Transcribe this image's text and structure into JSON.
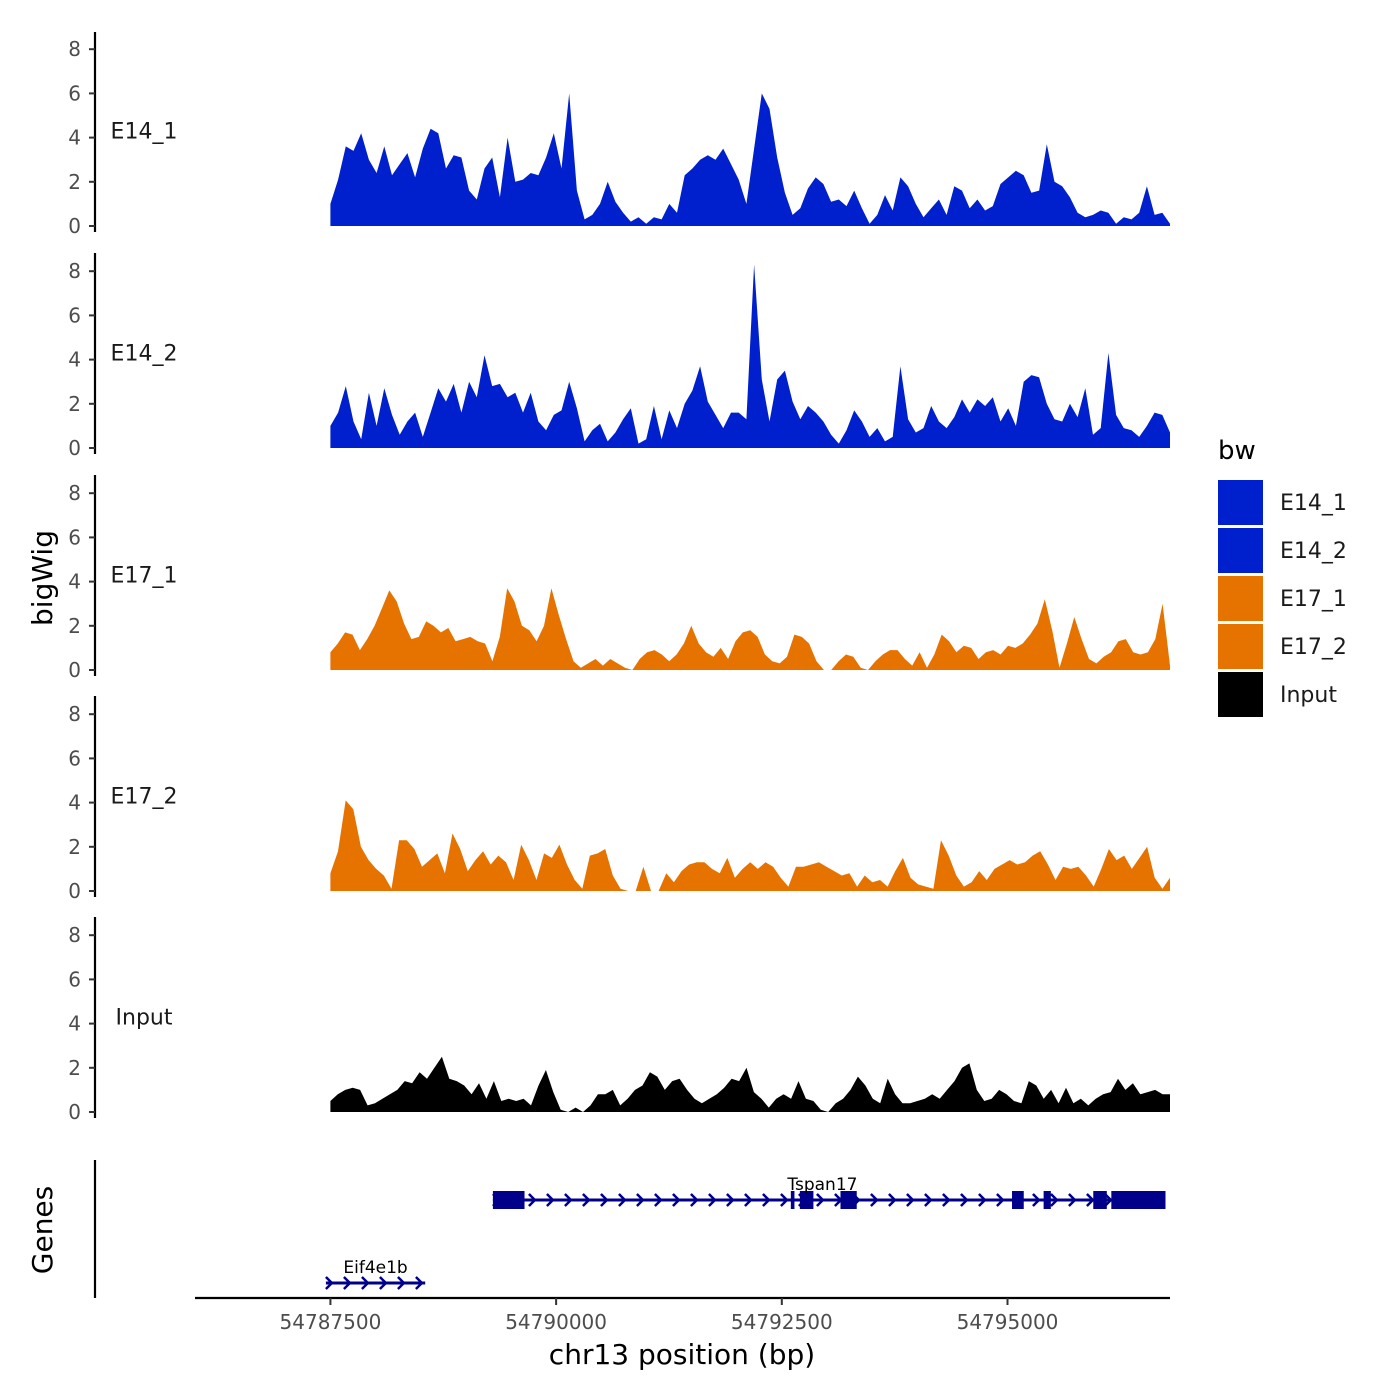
{
  "chart_data": {
    "type": "area",
    "title": "",
    "xlabel": "chr13 position (bp)",
    "ylabel": "bigWig",
    "genes_label": "Genes",
    "xlim": [
      54786000,
      54796800
    ],
    "ylim": [
      0,
      9
    ],
    "x_ticks": [
      54787500,
      54790000,
      54792500,
      54795000
    ],
    "x_tick_labels": [
      "54787500",
      "54790000",
      "54792500",
      "54795000"
    ],
    "y_ticks": [
      0,
      2,
      4,
      6,
      8
    ],
    "y_tick_labels": [
      "0",
      "2",
      "4",
      "6",
      "8"
    ],
    "data_range": [
      54787500,
      54796800
    ],
    "legend": {
      "title": "bw",
      "position": "right",
      "entries": [
        {
          "label": "E14_1",
          "color": "#0020CD"
        },
        {
          "label": "E14_2",
          "color": "#0020CD"
        },
        {
          "label": "E17_1",
          "color": "#E67300"
        },
        {
          "label": "E17_2",
          "color": "#E67300"
        },
        {
          "label": "Input",
          "color": "#000000"
        }
      ]
    },
    "series": [
      {
        "name": "E14_1",
        "color": "#0020CD",
        "values": [
          1.0,
          2.1,
          3.6,
          3.4,
          4.2,
          3.0,
          2.4,
          3.6,
          2.3,
          2.8,
          3.3,
          2.2,
          3.5,
          4.4,
          4.2,
          2.6,
          3.2,
          3.1,
          1.6,
          1.2,
          2.6,
          3.1,
          1.3,
          4.0,
          2.0,
          2.1,
          2.4,
          2.3,
          3.1,
          4.2,
          2.6,
          6.0,
          1.6,
          0.3,
          0.5,
          1.0,
          2.0,
          1.1,
          0.6,
          0.2,
          0.4,
          0.1,
          0.4,
          0.3,
          1.0,
          0.6,
          2.3,
          2.6,
          3.0,
          3.2,
          3.0,
          3.5,
          2.8,
          2.1,
          1.0,
          3.5,
          6.0,
          5.3,
          3.1,
          1.5,
          0.5,
          0.8,
          1.7,
          2.2,
          1.9,
          1.1,
          1.2,
          0.9,
          1.6,
          0.8,
          0.1,
          0.5,
          1.4,
          0.7,
          2.2,
          1.8,
          1.0,
          0.4,
          0.8,
          1.2,
          0.5,
          1.8,
          1.6,
          0.8,
          1.2,
          0.7,
          0.9,
          1.9,
          2.2,
          2.5,
          2.3,
          1.5,
          1.6,
          3.7,
          2.0,
          1.8,
          1.3,
          0.6,
          0.4,
          0.5,
          0.7,
          0.6,
          0.1,
          0.4,
          0.3,
          0.6,
          1.8,
          0.5,
          0.6,
          0.1
        ]
      },
      {
        "name": "E14_2",
        "color": "#0020CD",
        "values": [
          1.0,
          1.6,
          2.8,
          1.2,
          0.4,
          2.5,
          1.0,
          2.7,
          1.5,
          0.6,
          1.2,
          1.6,
          0.5,
          1.6,
          2.7,
          2.1,
          2.9,
          1.6,
          3.0,
          2.3,
          4.2,
          2.8,
          2.9,
          2.3,
          2.5,
          1.6,
          2.5,
          1.2,
          0.8,
          1.5,
          1.7,
          3.0,
          1.8,
          0.3,
          0.8,
          1.1,
          0.3,
          0.7,
          1.3,
          1.8,
          0.2,
          0.4,
          1.9,
          0.4,
          1.7,
          0.9,
          2.0,
          2.6,
          3.7,
          2.1,
          1.5,
          0.9,
          1.6,
          1.6,
          1.3,
          8.3,
          3.1,
          1.2,
          3.1,
          3.5,
          2.1,
          1.3,
          1.9,
          1.6,
          1.2,
          0.6,
          0.2,
          0.8,
          1.7,
          1.2,
          0.5,
          0.9,
          0.3,
          0.5,
          3.7,
          1.3,
          0.7,
          0.9,
          1.9,
          1.2,
          0.9,
          1.4,
          2.2,
          1.6,
          2.2,
          1.9,
          2.3,
          1.2,
          1.8,
          1.0,
          3.0,
          3.3,
          3.2,
          2.0,
          1.3,
          1.2,
          2.0,
          1.4,
          2.7,
          0.6,
          0.9,
          4.3,
          1.5,
          0.9,
          0.8,
          0.5,
          1.0,
          1.6,
          1.5,
          0.7
        ]
      },
      {
        "name": "E17_1",
        "color": "#E67300",
        "values": [
          0.8,
          1.2,
          1.7,
          1.6,
          0.9,
          1.4,
          2.0,
          2.8,
          3.6,
          3.1,
          2.1,
          1.4,
          1.5,
          2.2,
          2.0,
          1.7,
          1.9,
          1.3,
          1.4,
          1.5,
          1.3,
          1.2,
          0.4,
          1.5,
          3.7,
          3.1,
          2.0,
          1.8,
          1.3,
          2.0,
          3.7,
          2.5,
          1.4,
          0.4,
          0.1,
          0.3,
          0.5,
          0.2,
          0.5,
          0.3,
          0.1,
          0.0,
          0.5,
          0.8,
          0.9,
          0.7,
          0.4,
          0.7,
          1.2,
          2.0,
          1.2,
          0.8,
          0.6,
          1.0,
          0.5,
          1.3,
          1.7,
          1.8,
          1.5,
          0.7,
          0.4,
          0.3,
          0.6,
          1.6,
          1.5,
          1.2,
          0.4,
          0.0,
          0.0,
          0.4,
          0.7,
          0.6,
          0.1,
          0.0,
          0.4,
          0.7,
          0.9,
          0.9,
          0.5,
          0.2,
          0.8,
          0.1,
          0.7,
          1.6,
          1.3,
          0.8,
          1.1,
          1.0,
          0.5,
          0.8,
          0.9,
          0.7,
          1.1,
          1.0,
          1.2,
          1.6,
          2.1,
          3.2,
          1.8,
          0.1,
          1.2,
          2.4,
          1.4,
          0.5,
          0.3,
          0.6,
          0.8,
          1.3,
          1.4,
          0.8,
          0.7,
          0.8,
          1.4,
          3.0,
          0.2
        ]
      },
      {
        "name": "E17_2",
        "color": "#E67300",
        "values": [
          0.8,
          1.8,
          4.1,
          3.7,
          2.0,
          1.4,
          1.0,
          0.7,
          0.1,
          2.3,
          2.3,
          1.9,
          1.1,
          1.4,
          1.7,
          0.8,
          2.6,
          1.9,
          0.9,
          1.4,
          1.8,
          1.2,
          1.6,
          1.3,
          0.5,
          2.1,
          1.4,
          0.5,
          1.7,
          1.5,
          2.1,
          1.2,
          0.5,
          0.1,
          1.6,
          1.7,
          1.9,
          0.7,
          0.1,
          0.0,
          0.0,
          1.1,
          0.0,
          0.0,
          0.8,
          0.4,
          0.9,
          1.2,
          1.3,
          1.3,
          1.0,
          0.8,
          1.5,
          0.6,
          1.0,
          1.3,
          1.0,
          1.3,
          1.1,
          0.6,
          0.2,
          1.1,
          1.1,
          1.2,
          1.3,
          1.1,
          0.9,
          0.7,
          0.8,
          0.2,
          0.7,
          0.4,
          0.5,
          0.2,
          0.9,
          1.5,
          0.6,
          0.3,
          0.2,
          0.1,
          2.3,
          1.6,
          0.7,
          0.2,
          0.4,
          0.9,
          0.5,
          1.0,
          1.2,
          1.4,
          1.2,
          1.3,
          1.6,
          1.8,
          1.2,
          0.5,
          1.1,
          1.0,
          1.1,
          0.7,
          0.2,
          1.0,
          1.9,
          1.4,
          1.6,
          1.0,
          1.5,
          2.0,
          0.6,
          0.1,
          0.6
        ]
      },
      {
        "name": "Input",
        "color": "#000000",
        "values": [
          0.5,
          0.8,
          1.0,
          1.1,
          1.0,
          0.3,
          0.4,
          0.6,
          0.8,
          1.0,
          1.4,
          1.3,
          1.8,
          1.5,
          2.0,
          2.5,
          1.5,
          1.4,
          1.2,
          0.8,
          1.3,
          0.6,
          1.4,
          0.5,
          0.6,
          0.5,
          0.6,
          0.3,
          1.2,
          1.9,
          0.9,
          0.1,
          0.0,
          0.2,
          0.0,
          0.3,
          0.8,
          0.8,
          1.0,
          0.3,
          0.6,
          1.0,
          1.2,
          1.8,
          1.6,
          1.0,
          1.4,
          1.5,
          1.0,
          0.6,
          0.4,
          0.6,
          0.8,
          1.1,
          1.5,
          1.4,
          2.0,
          0.9,
          0.6,
          0.2,
          0.6,
          0.8,
          0.6,
          1.4,
          0.6,
          0.5,
          0.1,
          0.0,
          0.4,
          0.6,
          1.0,
          1.6,
          1.2,
          0.6,
          0.4,
          1.5,
          0.8,
          0.4,
          0.4,
          0.5,
          0.6,
          0.8,
          0.6,
          1.0,
          1.4,
          2.0,
          2.2,
          1.0,
          0.5,
          0.6,
          1.0,
          0.8,
          0.5,
          0.4,
          1.4,
          1.2,
          0.6,
          1.0,
          0.4,
          1.1,
          0.4,
          0.6,
          0.3,
          0.6,
          0.8,
          0.9,
          1.5,
          1.0,
          1.3,
          0.8,
          0.9,
          1.0,
          0.8,
          0.8
        ]
      }
    ],
    "genes": [
      {
        "name": "Tspan17",
        "color": "#00008B",
        "start": 54789300,
        "end": 54796750,
        "strand": "+",
        "row": 0,
        "exons": [
          [
            54789300,
            54789650
          ],
          [
            54792600,
            54792640
          ],
          [
            54792700,
            54792850
          ],
          [
            54793150,
            54793330
          ],
          [
            54795050,
            54795180
          ],
          [
            54795400,
            54795480
          ],
          [
            54795950,
            54796100
          ],
          [
            54796150,
            54796750
          ]
        ]
      },
      {
        "name": "Eif4e1b",
        "color": "#00008B",
        "start": 54787450,
        "end": 54788550,
        "strand": "+",
        "row": 1,
        "exons": []
      }
    ]
  }
}
